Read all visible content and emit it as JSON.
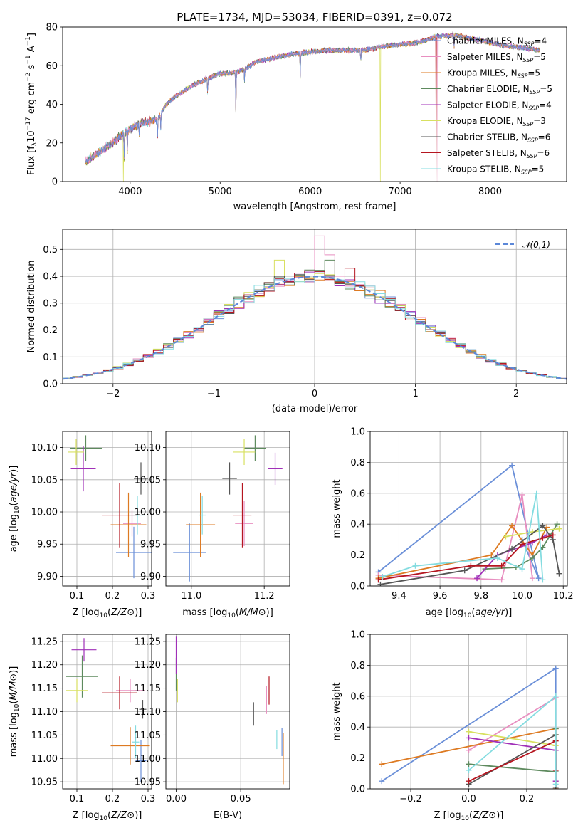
{
  "figure": {
    "title": "PLATE=1734, MJD=53034, FIBERID=0391, z=0.072"
  },
  "colors": [
    "#6a8fd8",
    "#e88fc0",
    "#dd7a22",
    "#5e8a5e",
    "#a030b8",
    "#d8e060",
    "#555555",
    "#b51620",
    "#84dce0"
  ],
  "models": [
    {
      "name": "Chabrier MILES",
      "nssp": 4
    },
    {
      "name": "Salpeter MILES",
      "nssp": 5
    },
    {
      "name": "Kroupa MILES",
      "nssp": 5
    },
    {
      "name": "Chabrier ELODIE",
      "nssp": 5
    },
    {
      "name": "Salpeter ELODIE",
      "nssp": 4
    },
    {
      "name": "Kroupa ELODIE",
      "nssp": 3
    },
    {
      "name": "Chabrier STELIB",
      "nssp": 6
    },
    {
      "name": "Salpeter STELIB",
      "nssp": 6
    },
    {
      "name": "Kroupa STELIB",
      "nssp": 5
    }
  ],
  "chart_data": [
    {
      "panel": "spectrum",
      "type": "line",
      "xlabel": "wavelength [Angstrom, rest frame]",
      "ylabel": "Flux [f_λ 10^-17 erg cm^-2 s^-1 A^-1]",
      "xlim": [
        3250,
        8850
      ],
      "ylim": [
        0,
        80
      ],
      "xticks": [
        4000,
        5000,
        6000,
        7000,
        8000
      ],
      "yticks": [
        0,
        20,
        40,
        60,
        80
      ],
      "continuum": [
        [
          3500,
          10
        ],
        [
          3650,
          15
        ],
        [
          3800,
          20
        ],
        [
          3900,
          24
        ],
        [
          4000,
          27
        ],
        [
          4100,
          30
        ],
        [
          4200,
          31
        ],
        [
          4300,
          32
        ],
        [
          4400,
          40
        ],
        [
          4500,
          44
        ],
        [
          4600,
          47
        ],
        [
          4700,
          50
        ],
        [
          4800,
          52
        ],
        [
          4900,
          54
        ],
        [
          5000,
          56
        ],
        [
          5100,
          56
        ],
        [
          5200,
          57
        ],
        [
          5300,
          59
        ],
        [
          5400,
          62
        ],
        [
          5600,
          64
        ],
        [
          5800,
          66
        ],
        [
          6000,
          67
        ],
        [
          6200,
          68
        ],
        [
          6400,
          68
        ],
        [
          6600,
          68
        ],
        [
          6800,
          70
        ],
        [
          7000,
          71
        ],
        [
          7200,
          72
        ],
        [
          7400,
          75
        ],
        [
          7600,
          76
        ],
        [
          7800,
          74
        ],
        [
          8000,
          72
        ],
        [
          8200,
          70
        ],
        [
          8400,
          69
        ],
        [
          8550,
          68
        ]
      ],
      "features": [
        [
          3934,
          14
        ],
        [
          3969,
          10
        ],
        [
          4102,
          6
        ],
        [
          4304,
          10
        ],
        [
          4340,
          8
        ],
        [
          4861,
          7
        ],
        [
          5175,
          22
        ],
        [
          5270,
          6
        ],
        [
          5890,
          12
        ],
        [
          6563,
          6
        ],
        [
          7600,
          6
        ]
      ],
      "dropouts": [
        {
          "model": 5,
          "x": 3925
        },
        {
          "model": 5,
          "x": 6780
        },
        {
          "model": 7,
          "x": 7400
        },
        {
          "model": 1,
          "x": 7420
        }
      ]
    },
    {
      "panel": "residual-histogram",
      "type": "histogram",
      "xlabel": "(data-model)/error",
      "ylabel": "Normed distribution",
      "xlim": [
        -2.5,
        2.5
      ],
      "ylim": [
        0,
        0.575
      ],
      "xticks": [
        -2,
        -1,
        0,
        1,
        2
      ],
      "yticks": [
        0.0,
        0.1,
        0.2,
        0.3,
        0.4,
        0.5
      ],
      "bin_width": 0.1,
      "reference": {
        "name": "𝒩(0,1)",
        "mean": 0,
        "sigma": 1
      },
      "highlights": [
        {
          "model": 1,
          "x": 0.05,
          "value": 0.55
        },
        {
          "model": 1,
          "x": 0.15,
          "value": 0.48
        },
        {
          "model": 3,
          "x": 0.15,
          "value": 0.46
        },
        {
          "model": 7,
          "x": 0.35,
          "value": 0.43
        },
        {
          "model": 5,
          "x": -0.35,
          "value": 0.46
        }
      ]
    },
    {
      "panel": "age-vs-Z",
      "type": "errorbar",
      "xlabel": "Z [log10(Z/Z⊙)]",
      "ylabel": "age  [log10(age/yr)]",
      "xlim": [
        0.06,
        0.31
      ],
      "ylim": [
        9.885,
        10.125
      ],
      "xticks": [
        0.1,
        0.2,
        0.3
      ],
      "yticks": [
        9.9,
        9.95,
        10.0,
        10.05,
        10.1
      ],
      "points": [
        {
          "model": 0,
          "x": 0.26,
          "y": 9.937,
          "xerr": 0.05,
          "yerr": 0.04
        },
        {
          "model": 1,
          "x": 0.255,
          "y": 9.982,
          "xerr": 0.025,
          "yerr": 0.02
        },
        {
          "model": 2,
          "x": 0.245,
          "y": 9.98,
          "xerr": 0.05,
          "yerr": 0.05
        },
        {
          "model": 3,
          "x": 0.125,
          "y": 10.099,
          "xerr": 0.045,
          "yerr": 0.02
        },
        {
          "model": 4,
          "x": 0.118,
          "y": 10.067,
          "xerr": 0.035,
          "yerr": 0.035
        },
        {
          "model": 5,
          "x": 0.098,
          "y": 10.093,
          "xerr": 0.022,
          "yerr": 0.02
        },
        {
          "model": 6,
          "x": 0.28,
          "y": 10.052,
          "xerr": 0.02,
          "yerr": 0.025
        },
        {
          "model": 7,
          "x": 0.22,
          "y": 9.995,
          "xerr": 0.05,
          "yerr": 0.05
        },
        {
          "model": 8,
          "x": 0.27,
          "y": 9.995,
          "xerr": 0.02,
          "yerr": 0.03
        }
      ]
    },
    {
      "panel": "age-vs-mass",
      "type": "errorbar",
      "xlabel": "mass [log10(M/M⊙)]",
      "ylabel": "",
      "xlim": [
        10.93,
        11.27
      ],
      "ylim": [
        9.885,
        10.125
      ],
      "xticks": [
        11.0,
        11.2
      ],
      "yticks": [
        9.9,
        9.95,
        10.0,
        10.05,
        10.1
      ],
      "points": [
        {
          "model": 0,
          "x": 10.995,
          "y": 9.937,
          "xerr": 0.045,
          "yerr": 0.045
        },
        {
          "model": 1,
          "x": 11.145,
          "y": 9.982,
          "xerr": 0.025,
          "yerr": 0.035
        },
        {
          "model": 2,
          "x": 11.025,
          "y": 9.98,
          "xerr": 0.04,
          "yerr": 0.05
        },
        {
          "model": 3,
          "x": 11.175,
          "y": 10.099,
          "xerr": 0.03,
          "yerr": 0.02
        },
        {
          "model": 4,
          "x": 11.23,
          "y": 10.067,
          "xerr": 0.02,
          "yerr": 0.025
        },
        {
          "model": 5,
          "x": 11.145,
          "y": 10.093,
          "xerr": 0.03,
          "yerr": 0.02
        },
        {
          "model": 6,
          "x": 11.105,
          "y": 10.052,
          "xerr": 0.02,
          "yerr": 0.025
        },
        {
          "model": 7,
          "x": 11.14,
          "y": 9.995,
          "xerr": 0.025,
          "yerr": 0.05
        },
        {
          "model": 8,
          "x": 11.03,
          "y": 9.995,
          "xerr": 0.01,
          "yerr": 0.03
        }
      ]
    },
    {
      "panel": "weight-vs-age",
      "type": "line",
      "xlabel": "age  [log10(age/yr)]",
      "ylabel": "mass weight",
      "xlim": [
        9.26,
        10.22
      ],
      "ylim": [
        0,
        1
      ],
      "xticks": [
        9.4,
        9.6,
        9.8,
        10.0,
        10.2
      ],
      "yticks": [
        0.0,
        0.2,
        0.4,
        0.6,
        0.8,
        1.0
      ],
      "series": [
        {
          "model": 0,
          "points": [
            [
              9.3,
              0.09
            ],
            [
              9.95,
              0.78
            ],
            [
              10.08,
              0.05
            ],
            [
              10.0,
              0.3
            ]
          ]
        },
        {
          "model": 1,
          "points": [
            [
              9.3,
              0.07
            ],
            [
              9.9,
              0.04
            ],
            [
              10.0,
              0.59
            ],
            [
              10.05,
              0.05
            ]
          ]
        },
        {
          "model": 2,
          "points": [
            [
              9.3,
              0.05
            ],
            [
              9.85,
              0.2
            ],
            [
              9.95,
              0.39
            ],
            [
              10.05,
              0.2
            ],
            [
              10.12,
              0.38
            ]
          ]
        },
        {
          "model": 3,
          "points": [
            [
              9.82,
              0.11
            ],
            [
              9.97,
              0.12
            ],
            [
              10.05,
              0.18
            ],
            [
              10.1,
              0.25
            ],
            [
              10.17,
              0.4
            ]
          ]
        },
        {
          "model": 4,
          "points": [
            [
              9.78,
              0.05
            ],
            [
              9.88,
              0.2
            ],
            [
              10.05,
              0.28
            ],
            [
              10.12,
              0.33
            ]
          ]
        },
        {
          "model": 5,
          "points": [
            [
              9.92,
              0.32
            ],
            [
              10.05,
              0.35
            ],
            [
              10.18,
              0.37
            ]
          ]
        },
        {
          "model": 6,
          "points": [
            [
              9.31,
              0.01
            ],
            [
              9.72,
              0.1
            ],
            [
              9.95,
              0.24
            ],
            [
              10.1,
              0.39
            ],
            [
              10.15,
              0.3
            ],
            [
              10.18,
              0.08
            ]
          ]
        },
        {
          "model": 7,
          "points": [
            [
              9.3,
              0.04
            ],
            [
              9.75,
              0.13
            ],
            [
              9.9,
              0.13
            ],
            [
              10.0,
              0.27
            ],
            [
              10.1,
              0.31
            ],
            [
              10.15,
              0.33
            ]
          ]
        },
        {
          "model": 8,
          "points": [
            [
              9.32,
              0.06
            ],
            [
              9.48,
              0.13
            ],
            [
              9.88,
              0.18
            ],
            [
              10.0,
              0.11
            ],
            [
              10.07,
              0.6
            ],
            [
              10.1,
              0.04
            ]
          ]
        }
      ]
    },
    {
      "panel": "mass-vs-Z",
      "type": "errorbar",
      "xlabel": "Z [log10(Z/Z⊙)]",
      "ylabel": "mass [log10(M/M⊙)]",
      "xlim": [
        0.06,
        0.31
      ],
      "ylim": [
        10.935,
        11.265
      ],
      "xticks": [
        0.1,
        0.2,
        0.3
      ],
      "yticks": [
        10.95,
        11.0,
        11.05,
        11.1,
        11.15,
        11.2,
        11.25
      ],
      "points": [
        {
          "model": 0,
          "x": 0.28,
          "y": 10.995,
          "xerr": 0.015,
          "yerr": 0.045
        },
        {
          "model": 1,
          "x": 0.25,
          "y": 11.145,
          "xerr": 0.04,
          "yerr": 0.025
        },
        {
          "model": 2,
          "x": 0.25,
          "y": 11.027,
          "xerr": 0.055,
          "yerr": 0.04
        },
        {
          "model": 3,
          "x": 0.115,
          "y": 11.175,
          "xerr": 0.045,
          "yerr": 0.045
        },
        {
          "model": 4,
          "x": 0.12,
          "y": 11.232,
          "xerr": 0.035,
          "yerr": 0.025
        },
        {
          "model": 5,
          "x": 0.1,
          "y": 11.145,
          "xerr": 0.03,
          "yerr": 0.025
        },
        {
          "model": 6,
          "x": 0.285,
          "y": 11.105,
          "xerr": 0.01,
          "yerr": 0.02
        },
        {
          "model": 7,
          "x": 0.22,
          "y": 11.14,
          "xerr": 0.05,
          "yerr": 0.035
        },
        {
          "model": 8,
          "x": 0.265,
          "y": 11.035,
          "xerr": 0.01,
          "yerr": 0.035
        }
      ]
    },
    {
      "panel": "mass-vs-EBV",
      "type": "errorbar",
      "xlabel": "E(B-V)",
      "ylabel": "",
      "xlim": [
        -0.008,
        0.088
      ],
      "ylim": [
        10.935,
        11.265
      ],
      "xticks": [
        0.0,
        0.05
      ],
      "yticks": [
        10.95,
        11.0,
        11.05,
        11.1,
        11.15,
        11.2,
        11.25
      ],
      "points": [
        {
          "model": 0,
          "x": 0.082,
          "y": 11.035,
          "xerr": 0,
          "yerr": 0.03
        },
        {
          "model": 1,
          "x": 0.07,
          "y": 11.125,
          "xerr": 0,
          "yerr": 0.03
        },
        {
          "model": 2,
          "x": 0.083,
          "y": 11.0,
          "xerr": 0,
          "yerr": 0.055
        },
        {
          "model": 3,
          "x": 0.0,
          "y": 11.18,
          "xerr": 0,
          "yerr": 0.035
        },
        {
          "model": 4,
          "x": 0.0,
          "y": 11.22,
          "xerr": 0,
          "yerr": 0.04
        },
        {
          "model": 5,
          "x": 0.001,
          "y": 11.145,
          "xerr": 0,
          "yerr": 0.025
        },
        {
          "model": 6,
          "x": 0.06,
          "y": 11.095,
          "xerr": 0,
          "yerr": 0.025
        },
        {
          "model": 7,
          "x": 0.072,
          "y": 11.145,
          "xerr": 0,
          "yerr": 0.03
        },
        {
          "model": 8,
          "x": 0.078,
          "y": 11.04,
          "xerr": 0,
          "yerr": 0.02
        }
      ]
    },
    {
      "panel": "weight-vs-Z",
      "type": "line",
      "xlabel": "Z [log10(Z/Z⊙)]",
      "ylabel": "mass weight",
      "xlim": [
        -0.34,
        0.34
      ],
      "ylim": [
        0,
        1
      ],
      "xticks": [
        -0.2,
        0.0,
        0.2
      ],
      "yticks": [
        0.0,
        0.2,
        0.4,
        0.6,
        0.8,
        1.0
      ],
      "series": [
        {
          "model": 0,
          "points": [
            [
              -0.3,
              0.05
            ],
            [
              0.3,
              0.78
            ],
            [
              0.3,
              0.0
            ]
          ]
        },
        {
          "model": 1,
          "points": [
            [
              0.0,
              0.25
            ],
            [
              0.3,
              0.59
            ],
            [
              0.3,
              0.05
            ]
          ]
        },
        {
          "model": 2,
          "points": [
            [
              -0.3,
              0.16
            ],
            [
              0.3,
              0.39
            ],
            [
              0.3,
              0.0
            ]
          ]
        },
        {
          "model": 3,
          "points": [
            [
              0.0,
              0.16
            ],
            [
              0.3,
              0.11
            ],
            [
              0.3,
              0.39
            ]
          ]
        },
        {
          "model": 4,
          "points": [
            [
              0.0,
              0.33
            ],
            [
              0.3,
              0.25
            ],
            [
              0.3,
              0.05
            ]
          ]
        },
        {
          "model": 5,
          "points": [
            [
              0.0,
              0.37
            ],
            [
              0.3,
              0.28
            ],
            [
              0.3,
              0.35
            ]
          ]
        },
        {
          "model": 6,
          "points": [
            [
              0.0,
              0.03
            ],
            [
              0.3,
              0.35
            ],
            [
              0.3,
              0.01
            ]
          ]
        },
        {
          "model": 7,
          "points": [
            [
              0.0,
              0.05
            ],
            [
              0.3,
              0.31
            ],
            [
              0.3,
              0.12
            ]
          ]
        },
        {
          "model": 8,
          "points": [
            [
              0.0,
              0.12
            ],
            [
              0.3,
              0.6
            ],
            [
              0.3,
              0.03
            ]
          ]
        }
      ]
    }
  ]
}
